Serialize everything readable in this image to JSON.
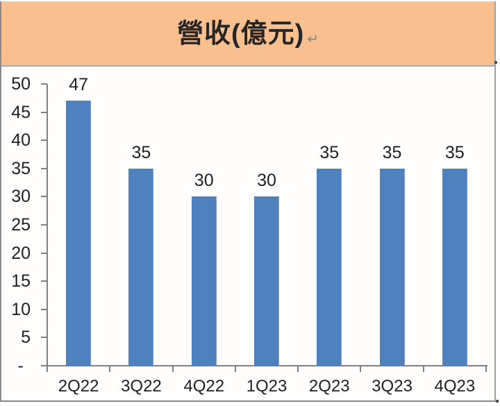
{
  "header": {
    "title": "營收(億元)",
    "paragraph_mark": "↵"
  },
  "chart_data": {
    "type": "bar",
    "title": "營收(億元)",
    "categories": [
      "2Q22",
      "3Q22",
      "4Q22",
      "1Q23",
      "2Q23",
      "3Q23",
      "4Q23"
    ],
    "values": [
      47,
      35,
      30,
      30,
      35,
      35,
      35
    ],
    "data_labels": [
      "47",
      "35",
      "30",
      "30",
      "35",
      "35",
      "35"
    ],
    "xlabel": "",
    "ylabel": "",
    "ylim": [
      0,
      50
    ],
    "ytick_interval": 5,
    "ytick_labels": [
      "-",
      "5",
      "10",
      "15",
      "20",
      "25",
      "30",
      "35",
      "40",
      "45",
      "50"
    ],
    "zero_tick_label": "-",
    "grid": false,
    "legend": false,
    "bar_color": "#4E81BD",
    "axis_color": "#808080",
    "text_color": "#1f1f1f",
    "header_background": "#F9BF8E",
    "title_color": "#262626"
  }
}
